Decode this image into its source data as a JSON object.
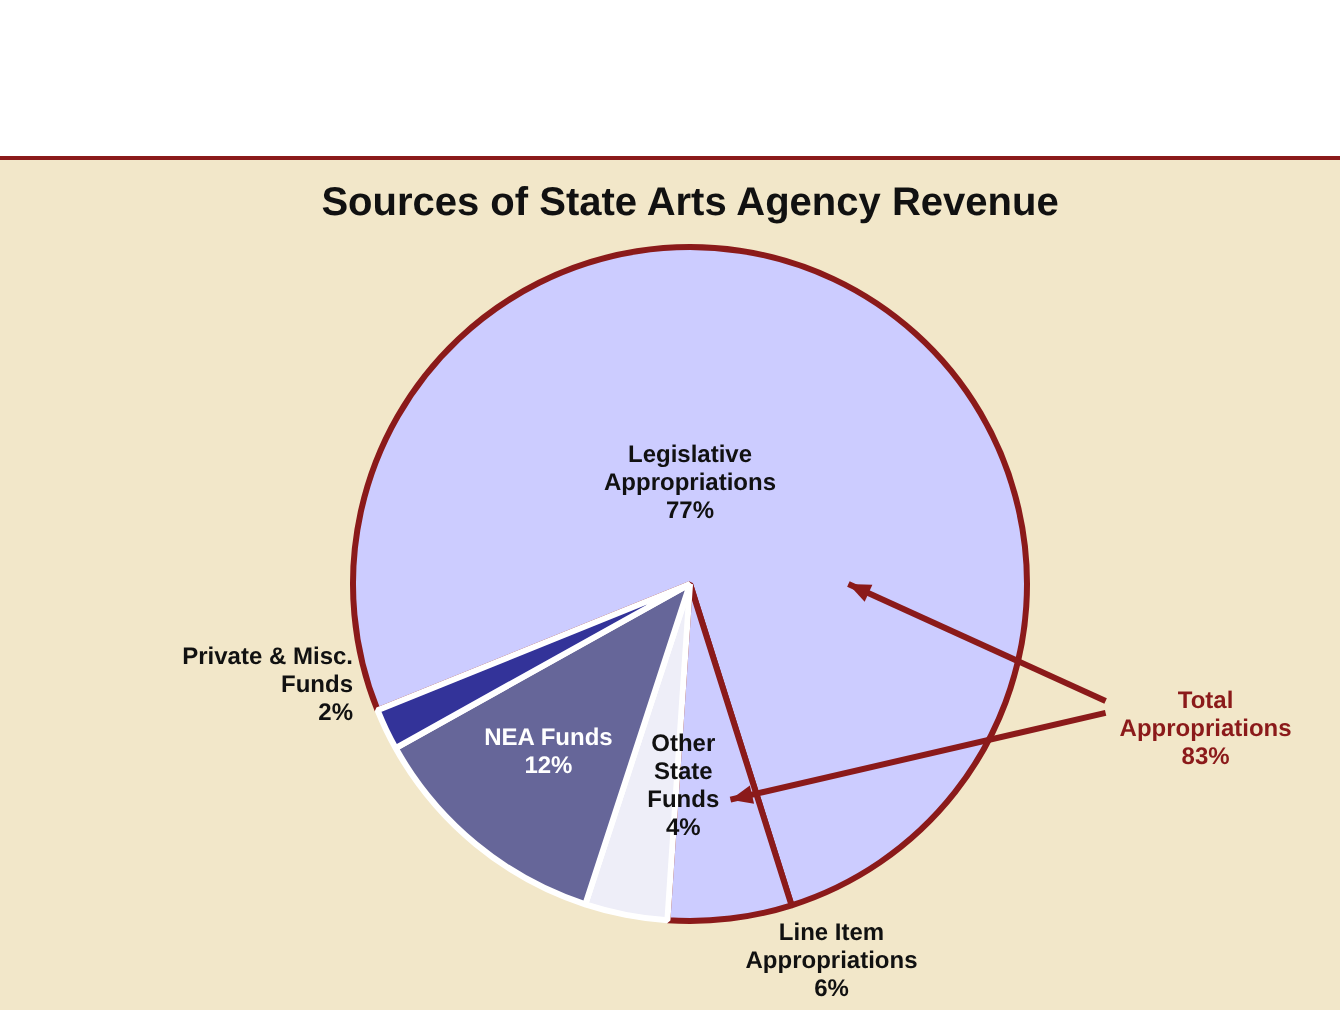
{
  "chart_data": {
    "type": "pie",
    "title": "Sources of State Arts Agency Revenue",
    "categories": [
      "Legislative Appropriations",
      "Line Item Appropriations",
      "Other State Funds",
      "NEA Funds",
      "Private & Misc. Funds"
    ],
    "values": [
      77,
      6,
      4,
      12,
      2
    ],
    "colors": [
      "#ccccff",
      "#ccccff",
      "#eeeef8",
      "#666699",
      "#333399"
    ],
    "value_labels": [
      "77%",
      "6%",
      "4%",
      "12%",
      "2%"
    ],
    "annotations": [
      "Total Appropriations 83%"
    ],
    "legend": false
  }
}
